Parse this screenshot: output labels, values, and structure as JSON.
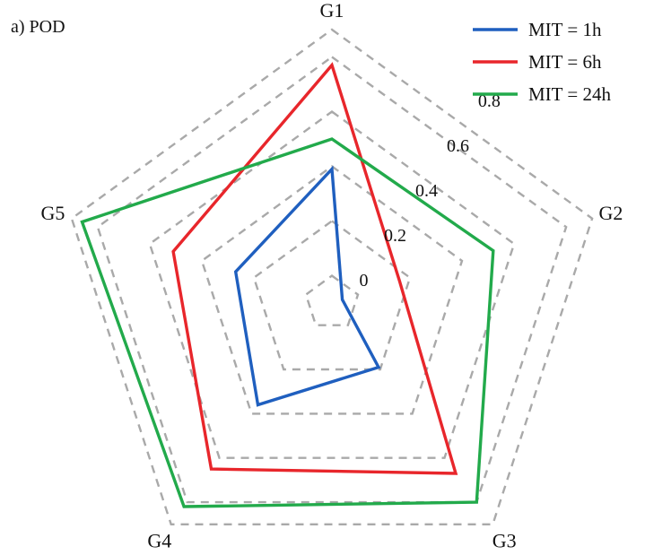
{
  "chart_data": {
    "type": "radar",
    "title": "a)  POD",
    "axes": [
      "G1",
      "G2",
      "G3",
      "G4",
      "G5"
    ],
    "ticks": [
      0,
      0.2,
      0.4,
      0.6,
      0.8
    ],
    "tick_labels": [
      "0",
      "0.2",
      "0.4",
      "0.6",
      "0.8"
    ],
    "range": [
      0,
      1
    ],
    "grid": true,
    "legend_position": "top-right",
    "series": [
      {
        "name": "MIT = 1h",
        "color": "#1f5fbf",
        "values": [
          0.49,
          0.04,
          0.29,
          0.46,
          0.37
        ]
      },
      {
        "name": "MIT = 6h",
        "color": "#e8262b",
        "values": [
          0.87,
          0.26,
          0.77,
          0.75,
          0.61
        ]
      },
      {
        "name": "MIT = 24h",
        "color": "#22aa4b",
        "values": [
          0.6,
          0.62,
          0.9,
          0.92,
          0.96
        ]
      }
    ]
  }
}
